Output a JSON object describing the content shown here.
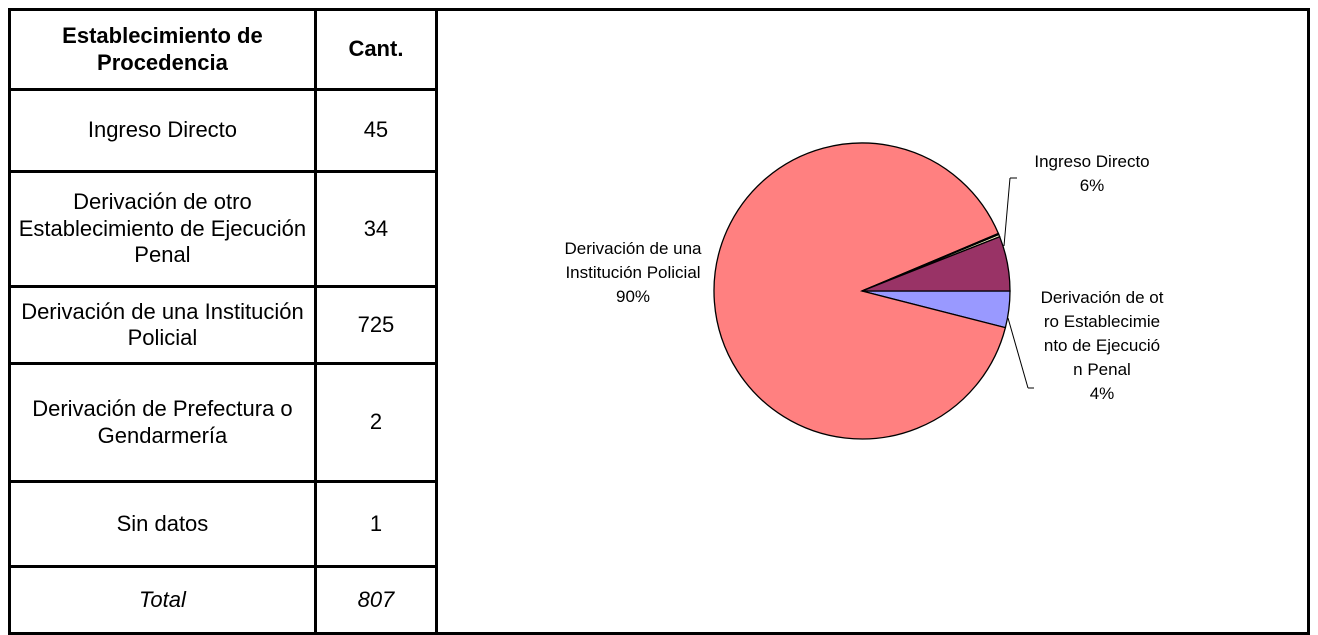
{
  "table": {
    "header": [
      "Establecimiento de Procedencia",
      "Cant."
    ],
    "rows": [
      [
        "Ingreso Directo",
        45
      ],
      [
        "Derivación de otro Establecimiento de Ejecución Penal",
        34
      ],
      [
        "Derivación de una Institución Policial",
        725
      ],
      [
        "Derivación de Prefectura o Gendarmería",
        2
      ],
      [
        "Sin datos",
        1
      ]
    ],
    "total": [
      "Total",
      807
    ]
  },
  "chart_data": {
    "type": "pie",
    "categories": [
      "Derivación de otro Establecimiento de Ejecución Penal",
      "Derivación de una Institución Policial",
      null,
      null,
      "Ingreso Directo"
    ],
    "values": [
      4,
      90,
      0.12,
      0.25,
      6
    ],
    "value_labels": [
      "4%",
      "90%",
      null,
      null,
      "6%"
    ],
    "colors": [
      "#9999ff",
      "#ff8080",
      "#ccffff",
      "#ffffcc",
      "#993366"
    ]
  }
}
